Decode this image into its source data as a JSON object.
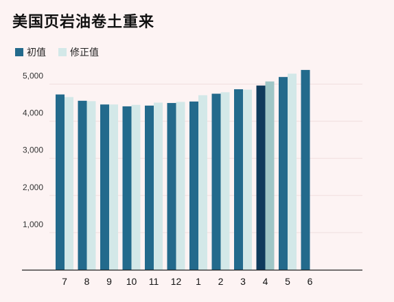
{
  "chart_data": {
    "type": "bar",
    "title": "美国页岩油卷土重来",
    "categories": [
      "7",
      "8",
      "9",
      "10",
      "11",
      "12",
      "1",
      "2",
      "3",
      "4",
      "5",
      "6"
    ],
    "series": [
      {
        "name": "初值",
        "color": "#236a8c",
        "values": [
          4720,
          4550,
          4450,
          4400,
          4420,
          4490,
          4530,
          4740,
          4860,
          4960,
          5190,
          5380
        ]
      },
      {
        "name": "修正值",
        "color": "#d3e8e8",
        "values": [
          4650,
          4540,
          4450,
          4440,
          4500,
          4520,
          4700,
          4780,
          4850,
          5070,
          5280,
          null
        ]
      }
    ],
    "highlight": {
      "category": "4",
      "initial_color": "#0f3b5c",
      "revised_color": "#9fc6c6"
    },
    "yticks": [
      "1,000",
      "2,000",
      "3,000",
      "4,000",
      "5,000"
    ],
    "ylim": [
      0,
      5600
    ],
    "grid": true,
    "legend_position": "top-left"
  }
}
